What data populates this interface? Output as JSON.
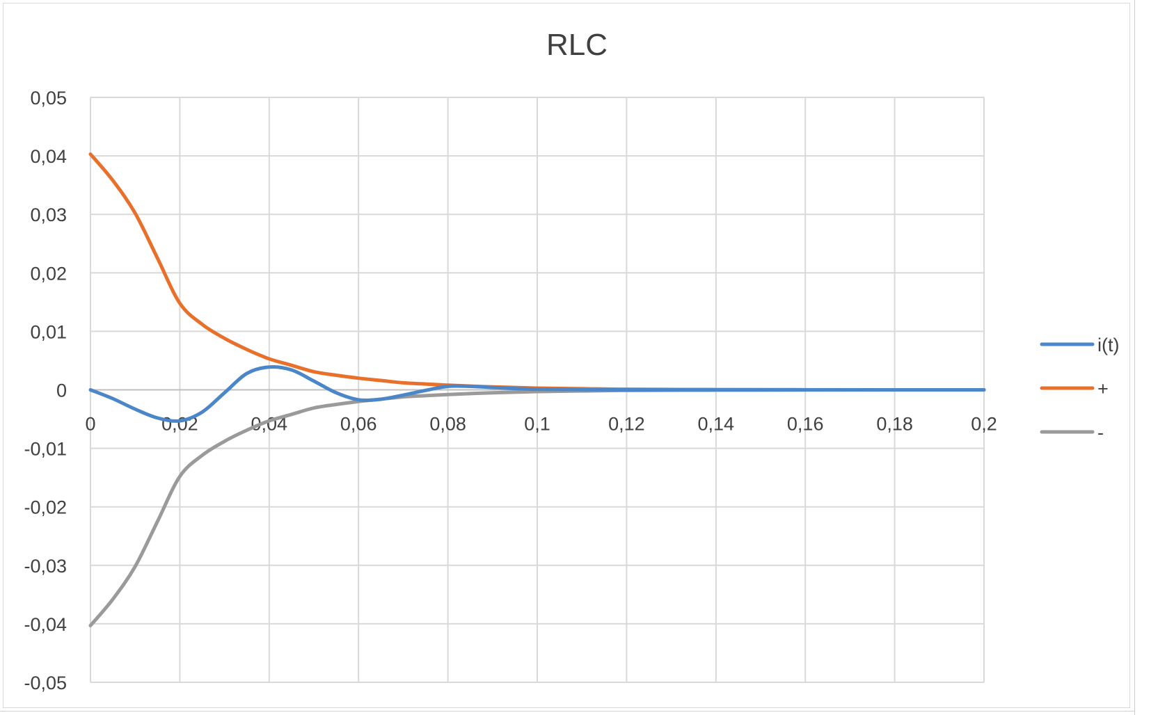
{
  "chart_data": {
    "type": "line",
    "title": "RLC",
    "xlabel": "",
    "ylabel": "",
    "xlim": [
      0,
      0.2
    ],
    "ylim": [
      -0.05,
      0.05
    ],
    "x_ticks": [
      "0",
      "0,02",
      "0,04",
      "0,06",
      "0,08",
      "0,1",
      "0,12",
      "0,14",
      "0,16",
      "0,18",
      "0,2"
    ],
    "y_ticks": [
      "0,05",
      "0,04",
      "0,03",
      "0,02",
      "0,01",
      "0",
      "-0,01",
      "-0,02",
      "-0,03",
      "-0,04",
      "-0,05"
    ],
    "grid": true,
    "legend_position": "right",
    "series": [
      {
        "name": "i(t)",
        "color": "#4a86c8",
        "points": [
          [
            0,
            0
          ],
          [
            0.005,
            -0.0015
          ],
          [
            0.01,
            -0.0033
          ],
          [
            0.015,
            -0.0048
          ],
          [
            0.02,
            -0.0053
          ],
          [
            0.025,
            -0.0038
          ],
          [
            0.03,
            -0.0005
          ],
          [
            0.035,
            0.0028
          ],
          [
            0.04,
            0.0039
          ],
          [
            0.045,
            0.0034
          ],
          [
            0.05,
            0.0015
          ],
          [
            0.055,
            -0.0005
          ],
          [
            0.06,
            -0.0017
          ],
          [
            0.065,
            -0.0016
          ],
          [
            0.07,
            -0.0009
          ],
          [
            0.075,
            -0.0001
          ],
          [
            0.08,
            0.0006
          ],
          [
            0.085,
            0.0006
          ],
          [
            0.09,
            0.0004
          ],
          [
            0.1,
            0.0001
          ],
          [
            0.12,
            0
          ],
          [
            0.14,
            0
          ],
          [
            0.16,
            0
          ],
          [
            0.18,
            0
          ],
          [
            0.2,
            0
          ]
        ]
      },
      {
        "name": "+",
        "color": "#e8702a",
        "points": [
          [
            0,
            0.0403
          ],
          [
            0.005,
            0.0358
          ],
          [
            0.01,
            0.0302
          ],
          [
            0.015,
            0.0225
          ],
          [
            0.02,
            0.0148
          ],
          [
            0.025,
            0.0112
          ],
          [
            0.03,
            0.0088
          ],
          [
            0.035,
            0.0069
          ],
          [
            0.04,
            0.0053
          ],
          [
            0.045,
            0.0042
          ],
          [
            0.05,
            0.0031
          ],
          [
            0.055,
            0.0025
          ],
          [
            0.06,
            0.002
          ],
          [
            0.065,
            0.0016
          ],
          [
            0.07,
            0.0012
          ],
          [
            0.075,
            0.001
          ],
          [
            0.08,
            0.0008
          ],
          [
            0.09,
            0.0005
          ],
          [
            0.1,
            0.0003
          ],
          [
            0.11,
            0.0002
          ],
          [
            0.12,
            0.0001
          ],
          [
            0.14,
            5e-05
          ],
          [
            0.16,
            2e-05
          ],
          [
            0.18,
            0
          ],
          [
            0.2,
            0
          ]
        ]
      },
      {
        "name": "-",
        "color": "#9a9a9a",
        "points": [
          [
            0,
            -0.0403
          ],
          [
            0.005,
            -0.0358
          ],
          [
            0.01,
            -0.0302
          ],
          [
            0.015,
            -0.0225
          ],
          [
            0.02,
            -0.0148
          ],
          [
            0.025,
            -0.0112
          ],
          [
            0.03,
            -0.0088
          ],
          [
            0.035,
            -0.0069
          ],
          [
            0.04,
            -0.0053
          ],
          [
            0.045,
            -0.0042
          ],
          [
            0.05,
            -0.0031
          ],
          [
            0.055,
            -0.0025
          ],
          [
            0.06,
            -0.002
          ],
          [
            0.065,
            -0.0016
          ],
          [
            0.07,
            -0.0012
          ],
          [
            0.075,
            -0.001
          ],
          [
            0.08,
            -0.0008
          ],
          [
            0.09,
            -0.0005
          ],
          [
            0.1,
            -0.0003
          ],
          [
            0.11,
            -0.0002
          ],
          [
            0.12,
            -0.0001
          ],
          [
            0.14,
            -5e-05
          ],
          [
            0.16,
            -2e-05
          ],
          [
            0.18,
            0
          ],
          [
            0.2,
            0
          ]
        ]
      }
    ]
  }
}
